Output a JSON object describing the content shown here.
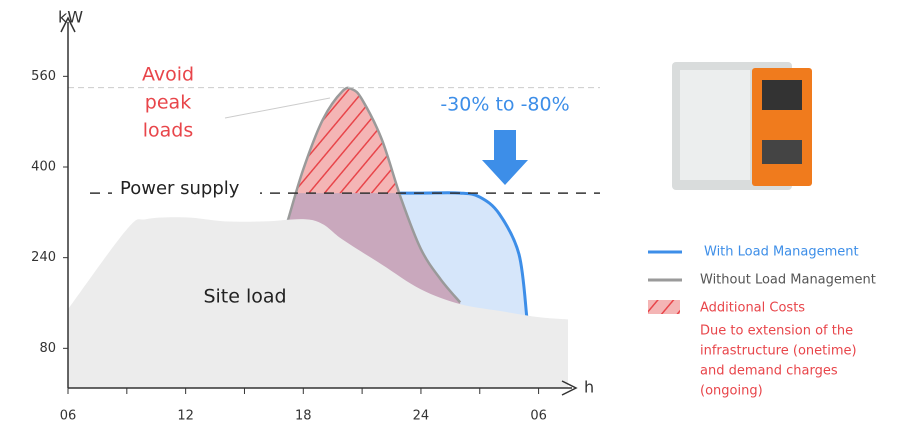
{
  "chart_data": {
    "type": "area",
    "y_label": "kW",
    "x_label": "h",
    "xlim": [
      6,
      31.5
    ],
    "xticks": [
      {
        "value": 6,
        "label": "06"
      },
      12,
      18,
      24,
      {
        "value": 30,
        "label": "06"
      }
    ],
    "ylim": [
      10,
      640
    ],
    "yticks": [
      80,
      240,
      400,
      560
    ],
    "supply_level": 354,
    "supply_label": "Power supply",
    "peak_level": 540,
    "peak_label": [
      "Avoid",
      "peak",
      "loads"
    ],
    "reduction_label": "-30% to -80%",
    "series": [
      {
        "name": "With Load Management",
        "color": "#3d8ee8",
        "x": [
          17.2,
          18,
          19,
          20,
          22,
          24,
          26,
          27,
          28,
          29,
          29.4
        ],
        "values": [
          304,
          347,
          350,
          354,
          354,
          354,
          354,
          347,
          317,
          246,
          135
        ]
      },
      {
        "name": "Without Load Management",
        "color": "#9a9a9a",
        "x": [
          17.2,
          18,
          19,
          20,
          20.5,
          21,
          22,
          23,
          24,
          25,
          26
        ],
        "values": [
          304,
          396,
          484,
          534,
          537,
          519,
          449,
          343,
          255,
          202,
          161
        ]
      },
      {
        "name": "Site load",
        "color": "#ececec",
        "x": [
          6,
          9,
          10,
          12,
          14,
          16,
          18,
          19,
          20,
          22,
          24,
          26,
          28,
          30,
          31.5
        ],
        "values": [
          149,
          290,
          308,
          311,
          304,
          304,
          308,
          299,
          272,
          228,
          184,
          158,
          146,
          135,
          131
        ]
      }
    ],
    "legend_extra": {
      "name": "Additional Costs",
      "color": "#e8454a",
      "note": [
        "Due to extension of the",
        "infrastructure (onetime)",
        "and demand charges",
        "(ongoing)"
      ]
    }
  }
}
